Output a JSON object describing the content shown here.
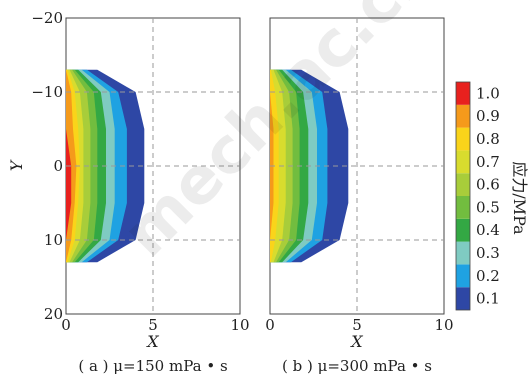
{
  "chart_data": [
    {
      "type": "heatmap",
      "panel": "(a)",
      "caption": "( a ) μ=150 mPa • s",
      "xlabel": "X",
      "ylabel": "Y",
      "xlim": [
        0,
        10
      ],
      "ylim": [
        -20,
        20
      ],
      "y_inverted": true,
      "grid": true,
      "xticks": [
        "0",
        "5",
        "10"
      ],
      "yticks": [
        "−20",
        "−10",
        "0",
        "10",
        "20"
      ],
      "contour_boundaries": {
        "y": [
          -13,
          -10,
          -5,
          0,
          5,
          10,
          13
        ],
        "0.1": [
          1.8,
          4.0,
          4.5,
          4.5,
          4.5,
          4.0,
          1.8
        ],
        "0.2": [
          1.2,
          3.0,
          3.5,
          3.5,
          3.5,
          3.0,
          1.2
        ],
        "0.3": [
          0.9,
          2.5,
          2.8,
          2.8,
          2.8,
          2.5,
          0.9
        ],
        "0.4": [
          0.7,
          2.0,
          2.3,
          2.3,
          2.3,
          2.0,
          0.7
        ],
        "0.5": [
          0.5,
          1.6,
          1.8,
          1.8,
          1.8,
          1.6,
          0.5
        ],
        "0.6": [
          0.35,
          1.2,
          1.4,
          1.4,
          1.4,
          1.2,
          0.35
        ],
        "0.7": [
          0.2,
          0.8,
          1.0,
          1.0,
          1.0,
          0.8,
          0.2
        ],
        "0.8": [
          0.1,
          0.5,
          0.7,
          0.8,
          0.7,
          0.5,
          0.1
        ],
        "0.9": [
          0,
          0.3,
          0.4,
          0.6,
          0.5,
          0.3,
          0
        ],
        "1.0": [
          0,
          0,
          0,
          0.3,
          0.3,
          0,
          0
        ]
      }
    },
    {
      "type": "heatmap",
      "panel": "(b)",
      "caption": "( b ) μ=300 mPa • s",
      "xlabel": "X",
      "ylabel": "",
      "xlim": [
        0,
        10
      ],
      "ylim": [
        -20,
        20
      ],
      "y_inverted": true,
      "grid": true,
      "xticks": [
        "0",
        "5",
        "10"
      ],
      "yticks": [],
      "contour_boundaries": {
        "y": [
          -13,
          -10,
          -5,
          0,
          5,
          10,
          13
        ],
        "0.1": [
          1.8,
          4.0,
          4.5,
          4.5,
          4.5,
          4.0,
          1.8
        ],
        "0.2": [
          1.2,
          3.0,
          3.3,
          3.3,
          3.3,
          3.0,
          1.2
        ],
        "0.3": [
          0.9,
          2.4,
          2.7,
          2.7,
          2.7,
          2.4,
          0.9
        ],
        "0.4": [
          0.7,
          1.9,
          2.2,
          2.2,
          2.2,
          1.9,
          0.7
        ],
        "0.5": [
          0.5,
          1.5,
          1.7,
          1.7,
          1.7,
          1.5,
          0.5
        ],
        "0.6": [
          0.35,
          1.1,
          1.3,
          1.3,
          1.3,
          1.1,
          0.35
        ],
        "0.7": [
          0.2,
          0.7,
          0.9,
          0.9,
          0.9,
          0.7,
          0.2
        ],
        "0.8": [
          0.05,
          0.3,
          0.5,
          0.5,
          0.5,
          0.3,
          0.05
        ],
        "0.9": [
          0,
          0,
          0.2,
          0.2,
          0.2,
          0,
          0
        ]
      }
    }
  ],
  "colorbar": {
    "title": "应力/MPa",
    "levels": [
      "0.1",
      "0.2",
      "0.3",
      "0.4",
      "0.5",
      "0.6",
      "0.7",
      "0.8",
      "0.9",
      "1.0"
    ],
    "colors": {
      "0.1": "#2e47a5",
      "0.2": "#1fa2e2",
      "0.3": "#7fcbc2",
      "0.4": "#33a844",
      "0.5": "#72bd3f",
      "0.6": "#a8cd3a",
      "0.7": "#d8dc2e",
      "0.8": "#fad41a",
      "0.9": "#f59a1b",
      "1.0": "#e8211e"
    }
  },
  "watermark": "mech.ac.cn"
}
